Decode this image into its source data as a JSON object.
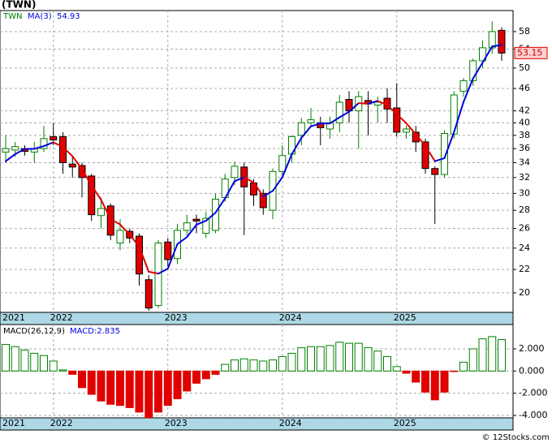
{
  "chart_data": [
    {
      "type": "candlestick",
      "title": "(TWN)",
      "series_name": "TWN",
      "ma_name": "MA(3)",
      "ma_last": 54.93,
      "last_price": 53.15,
      "categories": [
        "2021",
        null,
        null,
        null,
        null,
        "2022",
        null,
        null,
        null,
        null,
        null,
        null,
        null,
        null,
        null,
        null,
        null,
        "2023",
        null,
        null,
        null,
        null,
        null,
        null,
        null,
        null,
        null,
        null,
        null,
        "2024",
        null,
        null,
        null,
        null,
        null,
        null,
        null,
        null,
        null,
        null,
        null,
        "2025",
        null,
        null,
        null,
        null,
        null,
        null,
        null,
        null,
        null,
        null,
        null
      ],
      "open": [
        35.5,
        35.8,
        36,
        35.5,
        36,
        37.8,
        37.8,
        33.8,
        33.6,
        32.2,
        27.4,
        28.5,
        24.5,
        25.7,
        25.2,
        21.1,
        19,
        24.6,
        23,
        25.8,
        27,
        25.5,
        25.8,
        29.5,
        32,
        33.4,
        31.3,
        30,
        28,
        32.8,
        35.2,
        38,
        40,
        40,
        39,
        40,
        44,
        42,
        43.8,
        43,
        44.2,
        42.5,
        38.5,
        38.5,
        37,
        33.2,
        32.4,
        38.2,
        45.5,
        47.5,
        51.5,
        54.3,
        58.3
      ],
      "high": [
        38,
        37,
        36.5,
        37,
        39.5,
        40,
        38.5,
        35,
        34,
        32.5,
        29.5,
        28.8,
        27,
        26,
        25.5,
        21.5,
        24.8,
        25,
        26.5,
        27.5,
        27.5,
        27.8,
        30,
        32.5,
        34.2,
        34,
        31.8,
        30.5,
        33.2,
        36.5,
        38,
        40.8,
        42.5,
        41,
        41,
        44.8,
        45.5,
        45.5,
        45.5,
        44.5,
        46,
        47,
        39.5,
        39.5,
        37.5,
        33.5,
        38.8,
        45.5,
        48,
        52,
        56,
        60.5,
        59
      ],
      "low": [
        34,
        34.8,
        35,
        34,
        35.5,
        36.5,
        32.5,
        32,
        29.5,
        26.8,
        26,
        24.8,
        23.8,
        24.5,
        20.6,
        18.6,
        18.8,
        22.3,
        22.5,
        25.3,
        25.5,
        25,
        25.5,
        29,
        31,
        25.3,
        28.5,
        27.5,
        27,
        32,
        34,
        36.5,
        39.5,
        36.5,
        37.5,
        38.5,
        40,
        36,
        38,
        40,
        40,
        37.8,
        37.5,
        35.5,
        32.5,
        26.5,
        32,
        37.5,
        44.5,
        46.5,
        50,
        53,
        51.5
      ],
      "close": [
        36,
        36.3,
        35.6,
        36,
        37.5,
        37.3,
        34,
        33.4,
        32,
        27.5,
        28.2,
        25.3,
        25.8,
        25,
        21.6,
        18.8,
        24.5,
        22.9,
        25.8,
        26.6,
        26.8,
        27.1,
        29.3,
        31.8,
        33.5,
        30.8,
        29.8,
        28.3,
        32.8,
        35,
        37.8,
        40,
        40.5,
        39.2,
        40,
        43.5,
        42,
        44.5,
        43.2,
        43.5,
        42.3,
        38.5,
        39,
        37,
        33.2,
        32.4,
        38.3,
        44.8,
        47.5,
        51.5,
        54.3,
        58,
        53.15
      ],
      "ma": [
        34.2,
        35.2,
        35.97,
        35.97,
        36.37,
        36.93,
        36.27,
        34.9,
        33.13,
        30.97,
        29.23,
        27,
        26.43,
        25.37,
        24.13,
        21.8,
        21.63,
        22.07,
        24.4,
        25.1,
        26.4,
        26.83,
        27.73,
        29.4,
        31.53,
        32.03,
        31.37,
        29.63,
        30.3,
        32.03,
        35.2,
        37.6,
        39.43,
        39.9,
        39.9,
        40.9,
        41.83,
        43.33,
        43.23,
        43.73,
        43,
        41.43,
        39.93,
        38.17,
        36.4,
        34.2,
        34.63,
        38.5,
        43.53,
        47.93,
        51.1,
        54.6,
        54.93
      ],
      "ylim": [
        18.47,
        63.2
      ],
      "log_scale": true,
      "grid": true,
      "yticks": [
        20,
        22,
        24,
        26,
        28,
        30,
        32,
        34,
        36,
        38,
        40,
        42,
        46,
        50,
        54,
        58
      ],
      "up_color": "#008000",
      "down_color": "#e00000",
      "ma_up_color": "#0000dd",
      "ma_down_color": "#e00000"
    },
    {
      "type": "bar",
      "title": "MACD(26,12,9)",
      "legend": "MACD:2.835",
      "categories": [
        "2021",
        null,
        null,
        null,
        null,
        "2022",
        null,
        null,
        null,
        null,
        null,
        null,
        null,
        null,
        null,
        null,
        null,
        "2023",
        null,
        null,
        null,
        null,
        null,
        null,
        null,
        null,
        null,
        null,
        null,
        "2024",
        null,
        null,
        null,
        null,
        null,
        null,
        null,
        null,
        null,
        null,
        null,
        "2025",
        null,
        null,
        null,
        null,
        null,
        null,
        null,
        null,
        null,
        null,
        null
      ],
      "values": [
        2.4,
        2.2,
        1.9,
        1.6,
        1.4,
        0.9,
        0.1,
        -0.3,
        -1.5,
        -2.1,
        -2.7,
        -3,
        -3.1,
        -3.3,
        -3.7,
        -4.2,
        -3.7,
        -3.1,
        -2.5,
        -1.8,
        -1.1,
        -0.7,
        -0.3,
        0.6,
        1,
        1.1,
        1,
        0.9,
        1,
        1.3,
        1.6,
        2.1,
        2.2,
        2.2,
        2.3,
        2.6,
        2.5,
        2.5,
        2.1,
        1.8,
        1.3,
        0.4,
        -0.2,
        -1,
        -1.9,
        -2.6,
        -1.9,
        -0.05,
        0.8,
        2,
        2.9,
        3.1,
        2.835
      ],
      "ylim": [
        -4.22,
        4.19
      ],
      "grid": true,
      "yticks": [
        {
          "value": 2,
          "label": "2.000"
        },
        {
          "value": 0,
          "label": "0.000"
        },
        {
          "value": -2,
          "label": "-2.000"
        },
        {
          "value": -4,
          "label": "-4.000"
        }
      ],
      "up_color": "#008000",
      "down_color": "#e00000"
    }
  ],
  "footer": "© 12Stocks.com"
}
